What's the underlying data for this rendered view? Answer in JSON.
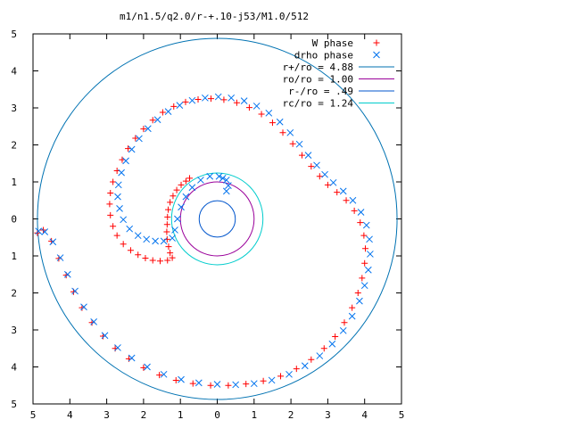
{
  "chart_data": {
    "type": "scatter",
    "title": "m1/n1.5/q2.0/r-+.10-j53/M1.0/512",
    "xlim": [
      -5,
      5
    ],
    "ylim": [
      -5,
      5
    ],
    "x_tick_values": [
      -5,
      -4,
      -3,
      -2,
      -1,
      0,
      1,
      2,
      3,
      4,
      5
    ],
    "x_tick_labels": [
      "5",
      "4",
      "3",
      "2",
      "1",
      "0",
      "1",
      "2",
      "3",
      "4",
      "5"
    ],
    "y_tick_values": [
      5,
      4,
      3,
      2,
      1,
      0,
      -1,
      -2,
      -3,
      -4,
      -5
    ],
    "y_tick_labels": [
      "5",
      "4",
      "3",
      "2",
      "1",
      "0",
      "1",
      "2",
      "3",
      "4",
      "5"
    ],
    "grid": false,
    "legend_position": "top-right",
    "series": [
      {
        "name": "W phase",
        "marker": "plus",
        "color": "#ff0000",
        "points": [
          [
            -0.75,
            1.1
          ],
          [
            -0.85,
            1.02
          ],
          [
            -0.98,
            0.92
          ],
          [
            -1.1,
            0.78
          ],
          [
            -1.2,
            0.62
          ],
          [
            -1.28,
            0.45
          ],
          [
            -1.33,
            0.25
          ],
          [
            -1.35,
            0.05
          ],
          [
            -1.36,
            -0.15
          ],
          [
            -1.37,
            -0.35
          ],
          [
            -1.36,
            -0.55
          ],
          [
            -1.32,
            -0.75
          ],
          [
            -1.28,
            -0.92
          ],
          [
            -1.22,
            -1.05
          ],
          [
            -1.35,
            -1.12
          ],
          [
            -1.55,
            -1.14
          ],
          [
            -1.75,
            -1.12
          ],
          [
            -1.95,
            -1.06
          ],
          [
            -2.15,
            -0.97
          ],
          [
            -2.35,
            -0.85
          ],
          [
            -2.55,
            -0.68
          ],
          [
            -2.72,
            -0.45
          ],
          [
            -2.83,
            -0.2
          ],
          [
            -2.9,
            0.1
          ],
          [
            -2.92,
            0.4
          ],
          [
            -2.9,
            0.7
          ],
          [
            -2.83,
            1.0
          ],
          [
            -2.72,
            1.3
          ],
          [
            -2.58,
            1.6
          ],
          [
            -2.42,
            1.9
          ],
          [
            -2.22,
            2.18
          ],
          [
            -2.0,
            2.43
          ],
          [
            -1.75,
            2.67
          ],
          [
            -1.48,
            2.88
          ],
          [
            -1.18,
            3.04
          ],
          [
            -0.86,
            3.16
          ],
          [
            -0.52,
            3.23
          ],
          [
            -0.17,
            3.25
          ],
          [
            0.18,
            3.22
          ],
          [
            0.53,
            3.14
          ],
          [
            0.87,
            3.01
          ],
          [
            1.2,
            2.83
          ],
          [
            1.5,
            2.6
          ],
          [
            1.78,
            2.33
          ],
          [
            2.05,
            2.03
          ],
          [
            2.3,
            1.72
          ],
          [
            2.55,
            1.42
          ],
          [
            2.78,
            1.15
          ],
          [
            3.0,
            0.92
          ],
          [
            3.25,
            0.72
          ],
          [
            3.5,
            0.5
          ],
          [
            3.72,
            0.22
          ],
          [
            3.88,
            -0.1
          ],
          [
            3.98,
            -0.45
          ],
          [
            4.02,
            -0.8
          ],
          [
            4.0,
            -1.2
          ],
          [
            3.93,
            -1.6
          ],
          [
            3.82,
            -2.0
          ],
          [
            3.66,
            -2.4
          ],
          [
            3.45,
            -2.8
          ],
          [
            3.2,
            -3.18
          ],
          [
            2.9,
            -3.5
          ],
          [
            2.55,
            -3.8
          ],
          [
            2.15,
            -4.05
          ],
          [
            1.72,
            -4.25
          ],
          [
            1.25,
            -4.38
          ],
          [
            0.78,
            -4.46
          ],
          [
            0.3,
            -4.5
          ],
          [
            -0.18,
            -4.5
          ],
          [
            -0.66,
            -4.45
          ],
          [
            -1.12,
            -4.36
          ],
          [
            -1.57,
            -4.22
          ],
          [
            -2.0,
            -4.02
          ],
          [
            -2.4,
            -3.78
          ],
          [
            -2.77,
            -3.5
          ],
          [
            -3.1,
            -3.17
          ],
          [
            -3.4,
            -2.8
          ],
          [
            -3.67,
            -2.4
          ],
          [
            -3.9,
            -1.97
          ],
          [
            -4.1,
            -1.52
          ],
          [
            -4.3,
            -1.07
          ],
          [
            -4.5,
            -0.6
          ],
          [
            -4.72,
            -0.3
          ],
          [
            -4.88,
            -0.38
          ]
        ]
      },
      {
        "name": "drho phase",
        "marker": "cross",
        "color": "#0072ee",
        "points": [
          [
            0.15,
            1.1
          ],
          [
            0.25,
            1.05
          ],
          [
            0.3,
            0.9
          ],
          [
            0.25,
            0.75
          ],
          [
            0.05,
            1.15
          ],
          [
            -0.2,
            1.15
          ],
          [
            -0.45,
            1.05
          ],
          [
            -0.68,
            0.85
          ],
          [
            -0.85,
            0.6
          ],
          [
            -0.98,
            0.32
          ],
          [
            -1.08,
            0.0
          ],
          [
            -1.15,
            -0.3
          ],
          [
            -1.22,
            -0.52
          ],
          [
            -1.45,
            -0.6
          ],
          [
            -1.68,
            -0.6
          ],
          [
            -1.92,
            -0.55
          ],
          [
            -2.15,
            -0.45
          ],
          [
            -2.38,
            -0.27
          ],
          [
            -2.55,
            -0.02
          ],
          [
            -2.65,
            0.28
          ],
          [
            -2.7,
            0.6
          ],
          [
            -2.68,
            0.92
          ],
          [
            -2.6,
            1.25
          ],
          [
            -2.48,
            1.57
          ],
          [
            -2.32,
            1.88
          ],
          [
            -2.12,
            2.17
          ],
          [
            -1.88,
            2.44
          ],
          [
            -1.62,
            2.68
          ],
          [
            -1.33,
            2.9
          ],
          [
            -1.02,
            3.07
          ],
          [
            -0.68,
            3.2
          ],
          [
            -0.33,
            3.27
          ],
          [
            0.03,
            3.3
          ],
          [
            0.38,
            3.27
          ],
          [
            0.73,
            3.19
          ],
          [
            1.07,
            3.05
          ],
          [
            1.4,
            2.86
          ],
          [
            1.7,
            2.62
          ],
          [
            1.98,
            2.33
          ],
          [
            2.23,
            2.02
          ],
          [
            2.47,
            1.72
          ],
          [
            2.7,
            1.45
          ],
          [
            2.92,
            1.2
          ],
          [
            3.15,
            0.98
          ],
          [
            3.42,
            0.75
          ],
          [
            3.68,
            0.5
          ],
          [
            3.9,
            0.18
          ],
          [
            4.05,
            -0.17
          ],
          [
            4.13,
            -0.55
          ],
          [
            4.15,
            -0.95
          ],
          [
            4.1,
            -1.38
          ],
          [
            4.0,
            -1.8
          ],
          [
            3.86,
            -2.22
          ],
          [
            3.66,
            -2.63
          ],
          [
            3.42,
            -3.02
          ],
          [
            3.12,
            -3.38
          ],
          [
            2.78,
            -3.7
          ],
          [
            2.38,
            -3.97
          ],
          [
            1.95,
            -4.2
          ],
          [
            1.48,
            -4.36
          ],
          [
            1.0,
            -4.45
          ],
          [
            0.5,
            -4.48
          ],
          [
            0.0,
            -4.47
          ],
          [
            -0.5,
            -4.43
          ],
          [
            -0.98,
            -4.34
          ],
          [
            -1.45,
            -4.2
          ],
          [
            -1.9,
            -4.0
          ],
          [
            -2.32,
            -3.76
          ],
          [
            -2.7,
            -3.48
          ],
          [
            -3.05,
            -3.15
          ],
          [
            -3.35,
            -2.78
          ],
          [
            -3.62,
            -2.38
          ],
          [
            -3.86,
            -1.95
          ],
          [
            -4.06,
            -1.5
          ],
          [
            -4.26,
            -1.05
          ],
          [
            -4.46,
            -0.62
          ],
          [
            -4.68,
            -0.35
          ],
          [
            -4.85,
            -0.33
          ]
        ]
      }
    ],
    "circles": [
      {
        "name": "r+/ro = 4.88",
        "radius": 4.88,
        "color": "#0072b2"
      },
      {
        "name": "ro/ro = 1.00",
        "radius": 1.0,
        "color": "#9a009a"
      },
      {
        "name": "r-/ro = .49",
        "radius": 0.49,
        "color": "#0055cc"
      },
      {
        "name": "rc/ro = 1.24",
        "radius": 1.24,
        "color": "#00cccc"
      }
    ]
  }
}
